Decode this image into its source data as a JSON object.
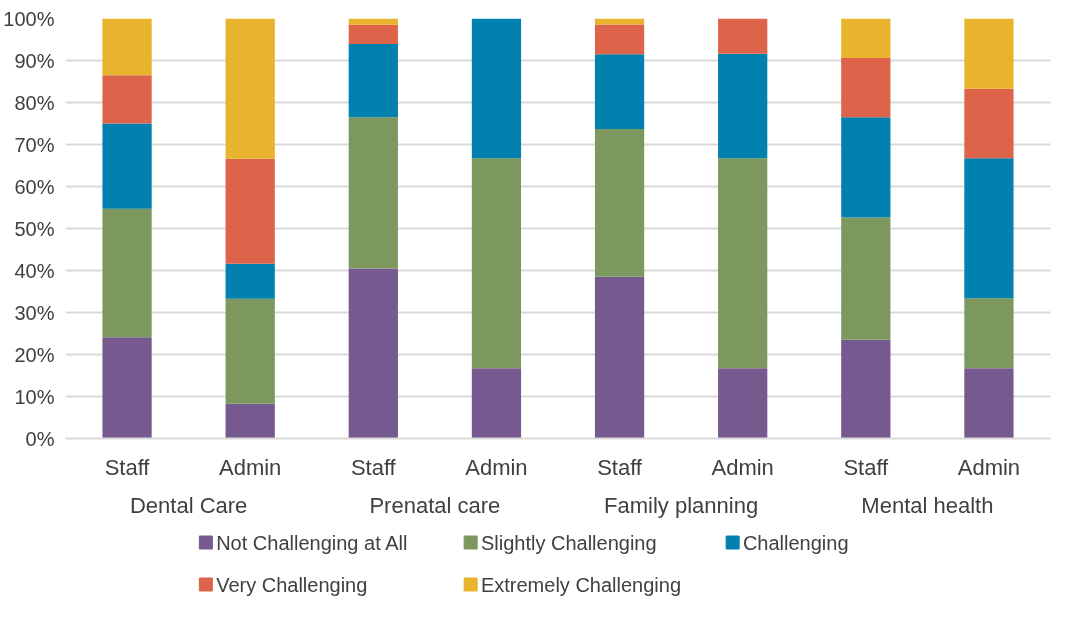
{
  "chart_data": {
    "type": "bar",
    "stacked": true,
    "categories": [
      "Staff",
      "Admin",
      "Staff",
      "Admin",
      "Staff",
      "Admin",
      "Staff",
      "Admin"
    ],
    "annotations": [
      "Dental Care",
      "Prenatal care",
      "Family planning",
      "Mental health"
    ],
    "series": [
      {
        "name": "Not Challenging at All",
        "color": "#765a8f",
        "values": [
          24.1,
          8.3,
          40.5,
          16.7,
          38.5,
          16.7,
          23.5,
          16.7
        ]
      },
      {
        "name": "Slightly Challenging",
        "color": "#7d985e",
        "values": [
          30.6,
          25.0,
          36.0,
          50.0,
          35.2,
          50.0,
          29.1,
          16.7
        ]
      },
      {
        "name": "Challenging",
        "color": "#0280ae",
        "values": [
          20.3,
          8.3,
          17.4,
          33.3,
          17.8,
          24.9,
          23.9,
          33.3
        ]
      },
      {
        "name": "Very Challenging",
        "color": "#dd634b",
        "values": [
          11.5,
          25.0,
          4.6,
          0,
          7.1,
          8.4,
          14.1,
          16.6
        ]
      },
      {
        "name": "Extremely Challenging",
        "color": "#e8b32d",
        "values": [
          13.5,
          33.4,
          1.5,
          0,
          1.4,
          0,
          9.4,
          16.7
        ]
      }
    ],
    "ylim": [
      0,
      100
    ],
    "yticks": [
      {
        "value": 0,
        "label": "0%"
      },
      {
        "value": 10,
        "label": "10%"
      },
      {
        "value": 20,
        "label": "20%"
      },
      {
        "value": 30,
        "label": "30%"
      },
      {
        "value": 40,
        "label": "40%"
      },
      {
        "value": 50,
        "label": "50%"
      },
      {
        "value": 60,
        "label": "60%"
      },
      {
        "value": 70,
        "label": "70%"
      },
      {
        "value": 80,
        "label": "80%"
      },
      {
        "value": 90,
        "label": "90%"
      },
      {
        "value": 100,
        "label": "100%"
      }
    ],
    "grid": "y",
    "legend": "bottom"
  }
}
